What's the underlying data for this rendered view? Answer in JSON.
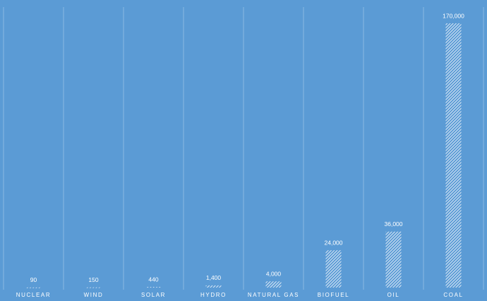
{
  "chart_data": {
    "type": "bar",
    "categories": [
      "NUCLEAR",
      "WIND",
      "SOLAR",
      "HYDRO",
      "NATURAL GAS",
      "BIOFUEL",
      "OIL",
      "COAL"
    ],
    "values": [
      90,
      150,
      440,
      1400,
      4000,
      24000,
      36000,
      170000
    ],
    "value_labels": [
      "90",
      "150",
      "440",
      "1,400",
      "4,000",
      "24,000",
      "36,000",
      "170,000"
    ],
    "color": "#ffffff"
  }
}
